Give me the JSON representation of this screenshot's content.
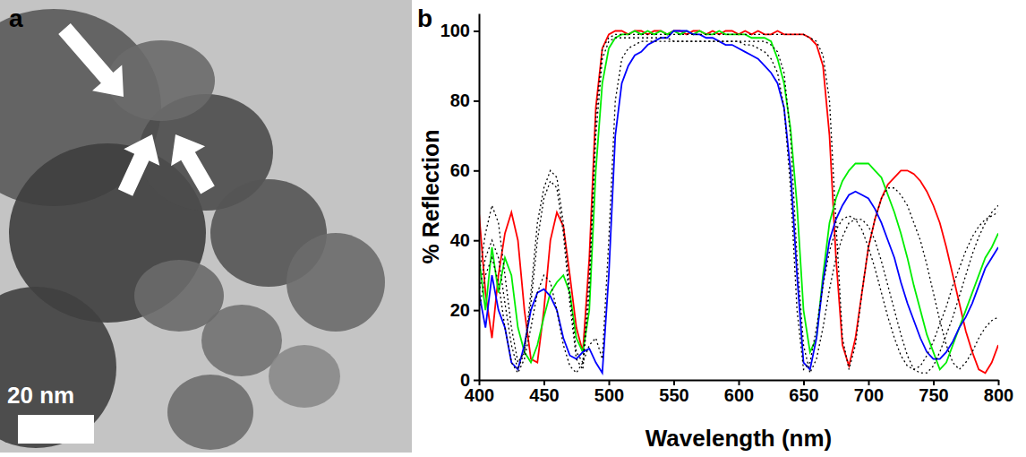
{
  "image_panel": {
    "label": "a",
    "scale_bar": "20 nm"
  },
  "chart_data": {
    "type": "line",
    "panel_label": "b",
    "x_label": "Wavelength (nm)",
    "y_label": "% Reflection",
    "xlim": [
      400,
      800
    ],
    "xticks": [
      400,
      450,
      500,
      550,
      600,
      650,
      700,
      750,
      800
    ],
    "ylim": [
      0,
      105
    ],
    "yticks": [
      0,
      20,
      40,
      60,
      80,
      100
    ],
    "x": [
      400,
      405,
      410,
      415,
      420,
      425,
      430,
      435,
      440,
      445,
      450,
      455,
      460,
      465,
      470,
      475,
      480,
      485,
      490,
      495,
      500,
      505,
      510,
      515,
      520,
      525,
      530,
      535,
      540,
      545,
      550,
      555,
      560,
      565,
      570,
      575,
      580,
      585,
      590,
      595,
      600,
      605,
      610,
      615,
      620,
      625,
      630,
      635,
      640,
      645,
      650,
      655,
      660,
      665,
      670,
      675,
      680,
      685,
      690,
      695,
      700,
      705,
      710,
      715,
      720,
      725,
      730,
      735,
      740,
      745,
      750,
      755,
      760,
      765,
      770,
      775,
      780,
      785,
      790,
      795,
      800
    ],
    "series": [
      {
        "color": "#ff0000",
        "line_style": "solid",
        "values": [
          48,
          25,
          12,
          30,
          42,
          48,
          40,
          20,
          6,
          5,
          20,
          40,
          48,
          44,
          30,
          15,
          8,
          35,
          78,
          95,
          99,
          100,
          100,
          99,
          100,
          100,
          99,
          100,
          100,
          99,
          100,
          100,
          99,
          100,
          100,
          99,
          100,
          99,
          100,
          100,
          99,
          100,
          99,
          100,
          99,
          99,
          100,
          99,
          99,
          99,
          99,
          98,
          96,
          90,
          70,
          35,
          10,
          4,
          12,
          25,
          38,
          46,
          52,
          56,
          58,
          60,
          60,
          59,
          57,
          54,
          50,
          45,
          38,
          30,
          22,
          14,
          8,
          3,
          2,
          5,
          10
        ]
      },
      {
        "color": "#00ee00",
        "line_style": "solid",
        "values": [
          35,
          20,
          38,
          25,
          35,
          30,
          15,
          8,
          5,
          10,
          18,
          25,
          28,
          30,
          25,
          12,
          8,
          20,
          60,
          85,
          95,
          98,
          99,
          99,
          100,
          99,
          100,
          99,
          100,
          99,
          100,
          99,
          100,
          99,
          100,
          99,
          99,
          100,
          99,
          99,
          99,
          99,
          98,
          98,
          98,
          97,
          92,
          85,
          72,
          50,
          20,
          8,
          12,
          30,
          45,
          52,
          57,
          60,
          62,
          62,
          62,
          60,
          58,
          53,
          48,
          42,
          35,
          27,
          20,
          13,
          8,
          3,
          5,
          10,
          15,
          20,
          25,
          30,
          35,
          38,
          42
        ]
      },
      {
        "color": "#0000ff",
        "line_style": "solid",
        "values": [
          25,
          15,
          30,
          20,
          15,
          5,
          3,
          10,
          20,
          25,
          26,
          24,
          20,
          12,
          7,
          6,
          8,
          9,
          5,
          2,
          30,
          70,
          85,
          90,
          93,
          94,
          96,
          97,
          98,
          98,
          100,
          100,
          100,
          99,
          99,
          98,
          98,
          97,
          96,
          96,
          95,
          94,
          93,
          92,
          90,
          88,
          85,
          78,
          60,
          30,
          5,
          3,
          12,
          28,
          40,
          46,
          50,
          53,
          54,
          53,
          52,
          49,
          45,
          40,
          35,
          28,
          22,
          17,
          12,
          8,
          6,
          6,
          8,
          11,
          15,
          18,
          22,
          27,
          32,
          35,
          38
        ]
      },
      {
        "color": "#000000",
        "line_style": "dotted",
        "values": [
          30,
          42,
          50,
          45,
          30,
          15,
          5,
          8,
          25,
          45,
          55,
          60,
          58,
          45,
          25,
          8,
          5,
          30,
          75,
          95,
          98,
          99,
          99,
          99,
          99,
          99,
          99,
          99,
          99,
          99,
          99,
          99,
          99,
          99,
          99,
          99,
          99,
          99,
          99,
          99,
          99,
          99,
          99,
          99,
          99,
          99,
          99,
          99,
          99,
          99,
          99,
          98,
          97,
          93,
          80,
          45,
          12,
          3,
          10,
          25,
          38,
          46,
          52,
          55,
          55,
          53,
          50,
          45,
          40,
          33,
          25,
          17,
          10,
          5,
          3,
          5,
          8,
          12,
          15,
          17,
          18
        ]
      },
      {
        "color": "#000000",
        "line_style": "dotted",
        "values": [
          25,
          35,
          40,
          35,
          22,
          10,
          3,
          8,
          22,
          40,
          52,
          57,
          55,
          42,
          22,
          6,
          3,
          25,
          70,
          92,
          97,
          98,
          98,
          98,
          98,
          98,
          98,
          98,
          98,
          98,
          97,
          97,
          97,
          97,
          97,
          97,
          97,
          97,
          97,
          97,
          97,
          97,
          97,
          97,
          97,
          96,
          94,
          88,
          70,
          35,
          10,
          2,
          6,
          15,
          26,
          35,
          41,
          45,
          46,
          46,
          44,
          40,
          34,
          27,
          20,
          13,
          7,
          3,
          2,
          2,
          4,
          8,
          13,
          18,
          24,
          30,
          36,
          41,
          45,
          48,
          50
        ]
      },
      {
        "color": "#000000",
        "line_style": "dotted",
        "values": [
          20,
          30,
          35,
          28,
          15,
          5,
          2,
          6,
          15,
          25,
          30,
          28,
          20,
          10,
          4,
          2,
          5,
          10,
          12,
          6,
          40,
          80,
          92,
          95,
          96,
          97,
          97,
          97,
          97,
          97,
          97,
          97,
          97,
          97,
          97,
          97,
          97,
          97,
          97,
          97,
          97,
          96,
          96,
          95,
          94,
          92,
          88,
          78,
          55,
          20,
          3,
          5,
          15,
          27,
          37,
          43,
          46,
          47,
          46,
          43,
          38,
          32,
          25,
          18,
          12,
          7,
          4,
          3,
          4,
          7,
          11,
          16,
          21,
          27,
          32,
          37,
          41,
          44,
          46,
          47,
          48
        ]
      }
    ]
  }
}
